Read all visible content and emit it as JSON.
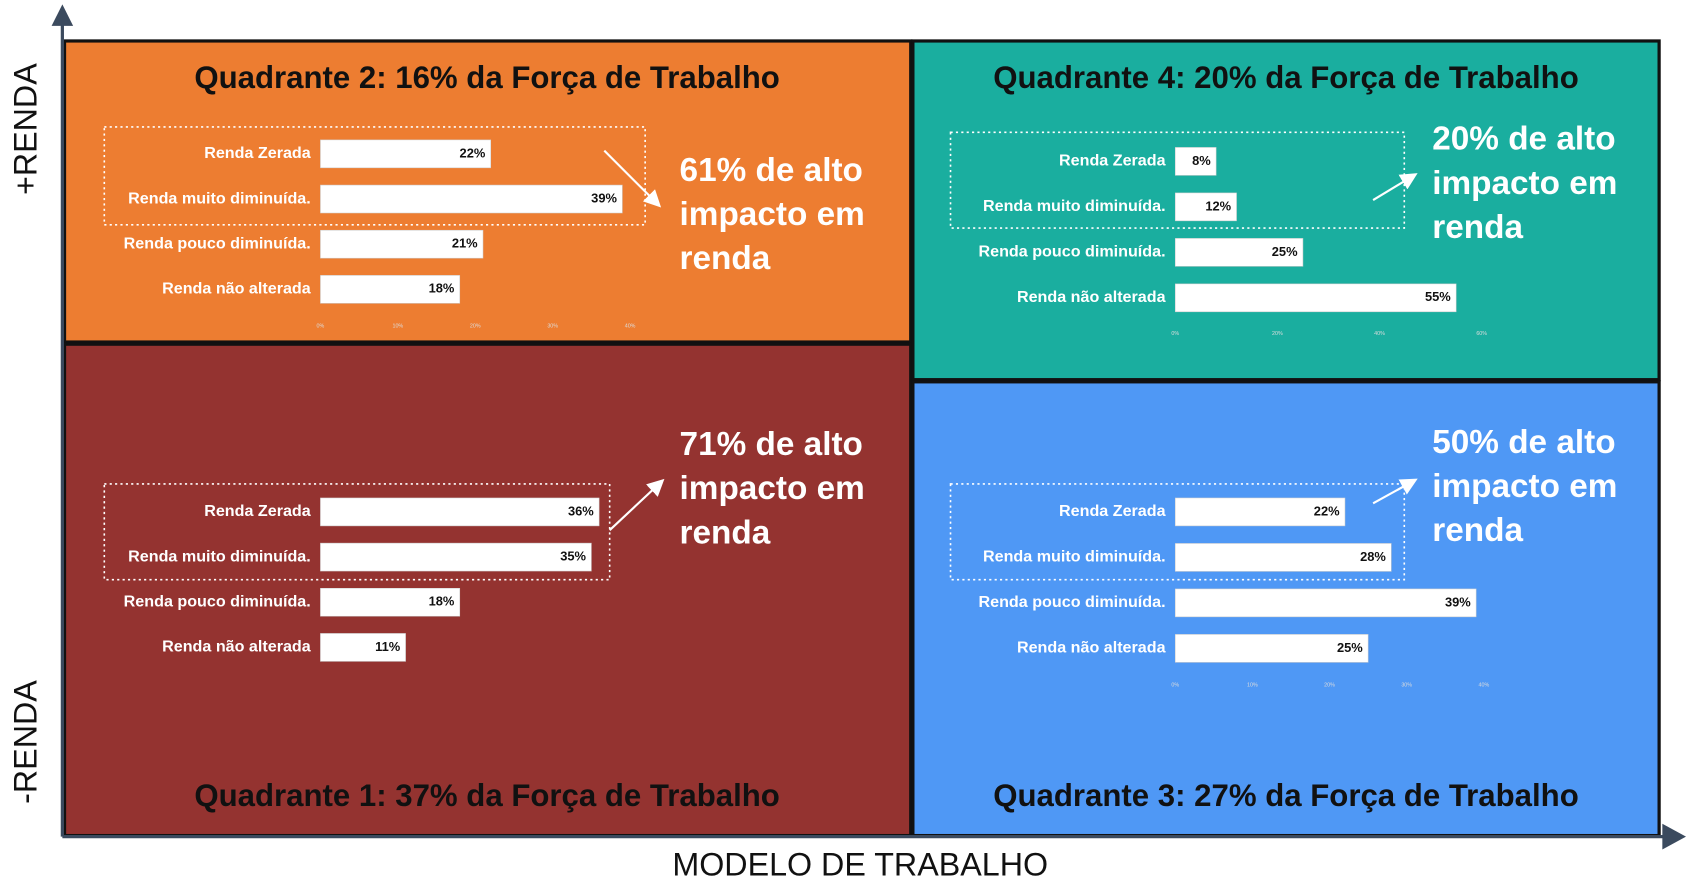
{
  "axes": {
    "y_top": "+RENDA",
    "y_bottom": "-RENDA",
    "x": "MODELO DE TRABALHO"
  },
  "chart_data": [
    {
      "type": "bar",
      "orientation": "horizontal",
      "title": "Quadrante 2: 16% da Força de Trabalho",
      "background": "#ed7d31",
      "color": "#ffffff",
      "annotation": [
        "61% de alto",
        "impacto em",
        "renda"
      ],
      "categories": [
        "Renda Zerada",
        "Renda muito diminuída.",
        "Renda pouco diminuída.",
        "Renda não alterada"
      ],
      "values": [
        22,
        39,
        21,
        18
      ],
      "value_labels": [
        "22%",
        "39%",
        "21%",
        "18%"
      ],
      "xlim": [
        0,
        40
      ],
      "xticks": [
        {
          "value": 0,
          "label": "0%"
        },
        {
          "value": 10,
          "label": "10%"
        },
        {
          "value": 20,
          "label": "20%"
        },
        {
          "value": 30,
          "label": "30%"
        },
        {
          "value": 40,
          "label": "40%"
        }
      ]
    },
    {
      "type": "bar",
      "orientation": "horizontal",
      "title": "Quadrante 1: 37% da Força de Trabalho",
      "background": "#943330",
      "color": "#ffffff",
      "annotation": [
        "71% de alto",
        "impacto em",
        "renda"
      ],
      "categories": [
        "Renda Zerada",
        "Renda muito diminuída.",
        "Renda pouco diminuída.",
        "Renda não alterada"
      ],
      "values": [
        36,
        35,
        18,
        11
      ],
      "value_labels": [
        "36%",
        "35%",
        "18%",
        "11%"
      ],
      "xlim": [
        0,
        40
      ]
    },
    {
      "type": "bar",
      "orientation": "horizontal",
      "title": "Quadrante 4: 20% da Força de Trabalho",
      "background": "#1aae9f",
      "color": "#ffffff",
      "annotation": [
        "20% de alto",
        "impacto em",
        "renda"
      ],
      "categories": [
        "Renda Zerada",
        "Renda muito diminuída.",
        "Renda pouco diminuída.",
        "Renda não alterada"
      ],
      "values": [
        8,
        12,
        25,
        55
      ],
      "value_labels": [
        "8%",
        "12%",
        "25%",
        "55%"
      ],
      "xlim": [
        0,
        60
      ],
      "xticks": [
        {
          "value": 0,
          "label": "0%"
        },
        {
          "value": 20,
          "label": "20%"
        },
        {
          "value": 40,
          "label": "40%"
        },
        {
          "value": 60,
          "label": "60%"
        }
      ]
    },
    {
      "type": "bar",
      "orientation": "horizontal",
      "title": "Quadrante 3: 27% da Força de Trabalho",
      "background": "#4f98f5",
      "color": "#ffffff",
      "annotation": [
        "50% de alto",
        "impacto em",
        "renda"
      ],
      "categories": [
        "Renda Zerada",
        "Renda muito diminuída.",
        "Renda pouco diminuída.",
        "Renda não alterada"
      ],
      "values": [
        22,
        28,
        39,
        25
      ],
      "value_labels": [
        "22%",
        "28%",
        "39%",
        "25%"
      ],
      "xlim": [
        0,
        40
      ],
      "xticks": [
        {
          "value": 0,
          "label": "0%"
        },
        {
          "value": 10,
          "label": "10%"
        },
        {
          "value": 20,
          "label": "20%"
        },
        {
          "value": 30,
          "label": "30%"
        },
        {
          "value": 40,
          "label": "40%"
        }
      ]
    }
  ]
}
